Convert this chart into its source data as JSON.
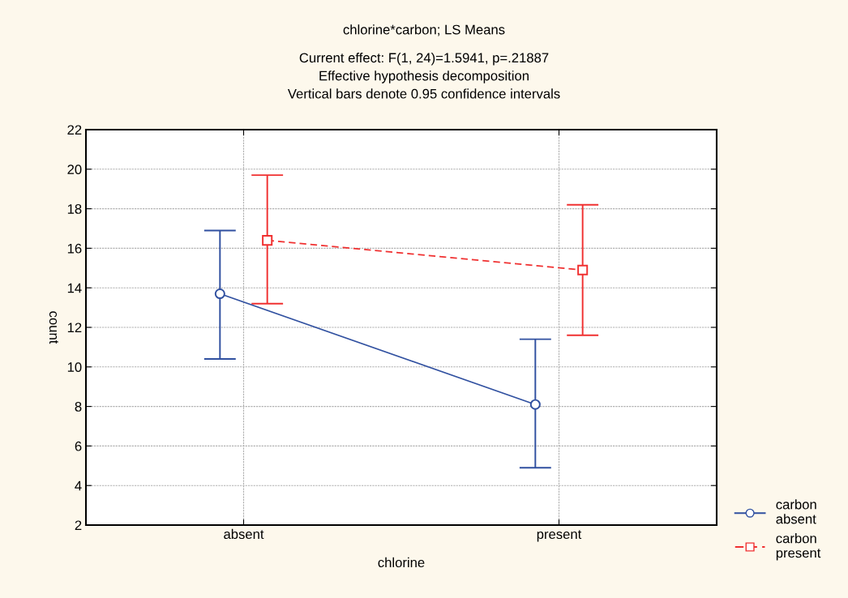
{
  "chart_data": {
    "type": "line",
    "title": "chlorine*carbon; LS Means",
    "subtitle": "Current effect: F(1, 24)=1.5941, p=.21887\nEffective hypothesis decomposition\nVertical bars denote 0.95 confidence intervals",
    "xlabel": "chlorine",
    "ylabel": "count",
    "categories": [
      "absent",
      "present"
    ],
    "ylim": [
      2,
      22
    ],
    "yticks": [
      2,
      4,
      6,
      8,
      10,
      12,
      14,
      16,
      18,
      20,
      22
    ],
    "grid": true,
    "legend": "bottom right",
    "series": [
      {
        "name": "carbon absent",
        "color": "#3050a0",
        "values": [
          13.7,
          8.1
        ],
        "errors": [
          [
            10.4,
            16.9
          ],
          [
            4.9,
            11.4
          ]
        ],
        "marker": "circle",
        "line_style": "solid"
      },
      {
        "name": "carbon present",
        "color": "#f03030",
        "values": [
          16.4,
          14.9
        ],
        "errors": [
          [
            13.2,
            19.7
          ],
          [
            11.6,
            18.2
          ]
        ],
        "marker": "square",
        "line_style": "dashed"
      }
    ]
  }
}
